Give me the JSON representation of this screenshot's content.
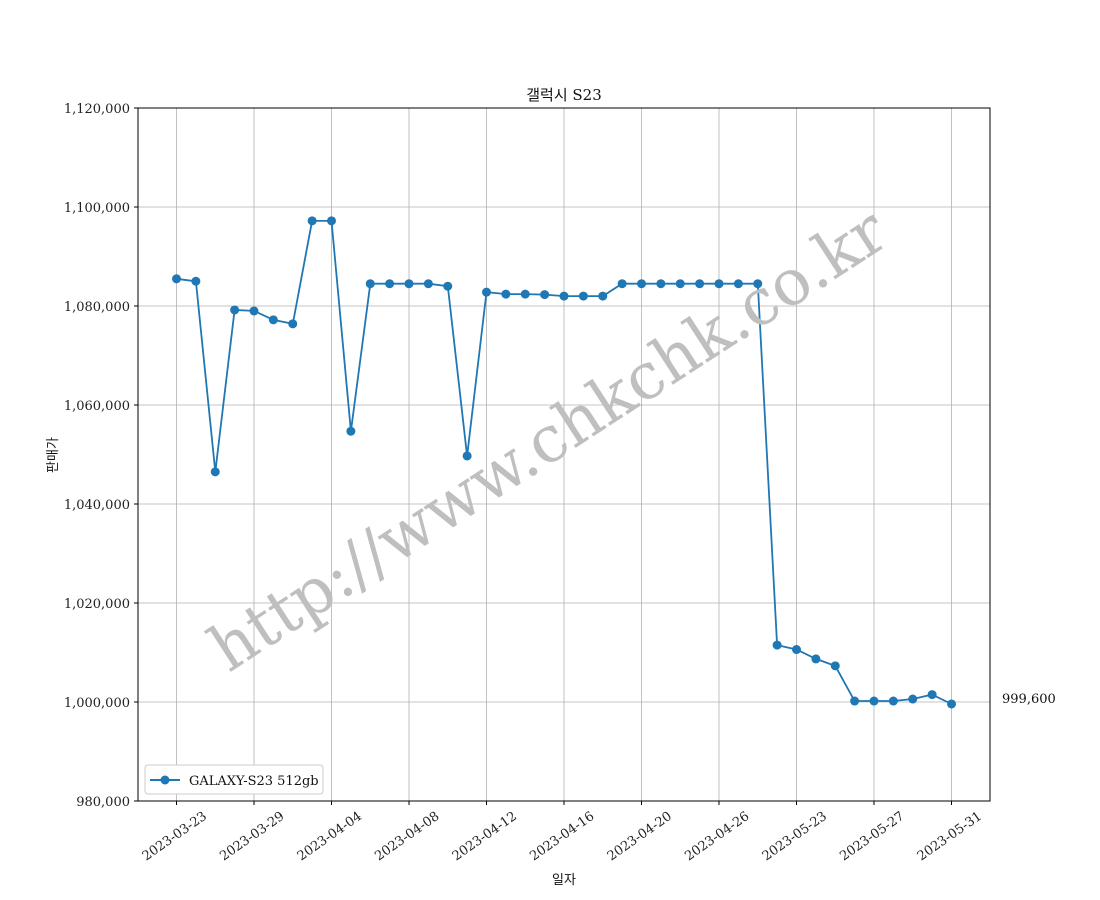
{
  "chart_data": {
    "type": "line",
    "title": "갤럭시 S23",
    "xlabel": "일자",
    "ylabel": "판매가",
    "ylim": [
      980000,
      1120000
    ],
    "yticks": [
      980000,
      1000000,
      1020000,
      1040000,
      1060000,
      1080000,
      1100000,
      1120000
    ],
    "ytick_labels": [
      "980,000",
      "1,000,000",
      "1,020,000",
      "1,040,000",
      "1,060,000",
      "1,080,000",
      "1,100,000",
      "1,120,000"
    ],
    "xtick_labels": [
      "2023-03-23",
      "2023-03-29",
      "2023-04-04",
      "2023-04-08",
      "2023-04-12",
      "2023-04-16",
      "2023-04-20",
      "2023-04-26",
      "2023-05-23",
      "2023-05-27",
      "2023-05-31"
    ],
    "grid": true,
    "legend_position": "lower-left",
    "series": [
      {
        "name": "GALAXY-S23 512gb",
        "color": "#1f77b4",
        "values": [
          1085500,
          1085000,
          1046500,
          1079200,
          1079000,
          1077200,
          1076400,
          1097200,
          1097200,
          1054700,
          1084500,
          1084500,
          1084500,
          1084500,
          1084000,
          1049700,
          1082800,
          1082400,
          1082400,
          1082300,
          1082000,
          1082000,
          1082000,
          1084500,
          1084500,
          1084500,
          1084500,
          1084500,
          1084500,
          1084500,
          1084500,
          1011500,
          1010600,
          1008700,
          1007300,
          1000200,
          1000200,
          1000200,
          1000600,
          1001500,
          999600
        ]
      }
    ],
    "last_value_label": "999,600",
    "watermark": "http://www.chkchk.co.kr"
  }
}
